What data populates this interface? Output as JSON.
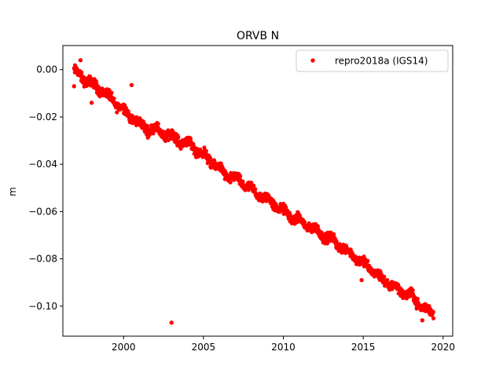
{
  "chart_data": {
    "type": "scatter",
    "title": "ORVB N",
    "xlabel": "",
    "ylabel": "m",
    "xlim": [
      1996.2,
      2020.6
    ],
    "ylim": [
      -0.1127,
      0.0102
    ],
    "x_ticks": [
      2000,
      2005,
      2010,
      2015,
      2020
    ],
    "x_tick_labels": [
      "2000",
      "2005",
      "2010",
      "2015",
      "2020"
    ],
    "y_ticks": [
      0.0,
      -0.02,
      -0.04,
      -0.06,
      -0.08,
      -0.1
    ],
    "y_tick_labels": [
      "0.00",
      "−0.02",
      "−0.04",
      "−0.06",
      "−0.08",
      "−0.10"
    ],
    "grid": false,
    "legend_position": "top-right",
    "series": [
      {
        "name": "repro2018a (IGS14)",
        "color": "#ff0000",
        "marker": "circle",
        "trend": {
          "x": [
            1996.9,
            1997.2,
            1997.8,
            1998.5,
            1999.0,
            1999.5,
            2000.0,
            2000.5,
            2001.0,
            2001.5,
            2002.0,
            2002.5,
            2003.0,
            2003.5,
            2004.0,
            2004.5,
            2005.0,
            2005.5,
            2006.0,
            2006.5,
            2007.0,
            2007.5,
            2008.0,
            2008.5,
            2009.0,
            2009.5,
            2010.0,
            2010.5,
            2011.0,
            2011.5,
            2012.0,
            2012.5,
            2013.0,
            2013.5,
            2014.0,
            2014.5,
            2015.0,
            2015.5,
            2016.0,
            2016.5,
            2017.0,
            2017.5,
            2018.0,
            2018.5,
            2019.0,
            2019.4
          ],
          "y": [
            -0.001,
            -0.002,
            -0.005,
            -0.008,
            -0.011,
            -0.014,
            -0.017,
            -0.02,
            -0.023,
            -0.025,
            -0.025,
            -0.027,
            -0.028,
            -0.03,
            -0.031,
            -0.034,
            -0.036,
            -0.039,
            -0.042,
            -0.045,
            -0.046,
            -0.048,
            -0.051,
            -0.053,
            -0.055,
            -0.057,
            -0.06,
            -0.062,
            -0.064,
            -0.066,
            -0.068,
            -0.07,
            -0.072,
            -0.074,
            -0.077,
            -0.079,
            -0.082,
            -0.084,
            -0.088,
            -0.09,
            -0.092,
            -0.094,
            -0.096,
            -0.099,
            -0.102,
            -0.103
          ]
        },
        "spread": 0.0025,
        "outliers": [
          {
            "x": 1996.9,
            "y": -0.007
          },
          {
            "x": 1997.3,
            "y": 0.004
          },
          {
            "x": 1998.0,
            "y": -0.014
          },
          {
            "x": 2000.5,
            "y": -0.0065
          },
          {
            "x": 2003.0,
            "y": -0.107
          },
          {
            "x": 2014.9,
            "y": -0.089
          },
          {
            "x": 2018.7,
            "y": -0.106
          }
        ]
      }
    ]
  }
}
